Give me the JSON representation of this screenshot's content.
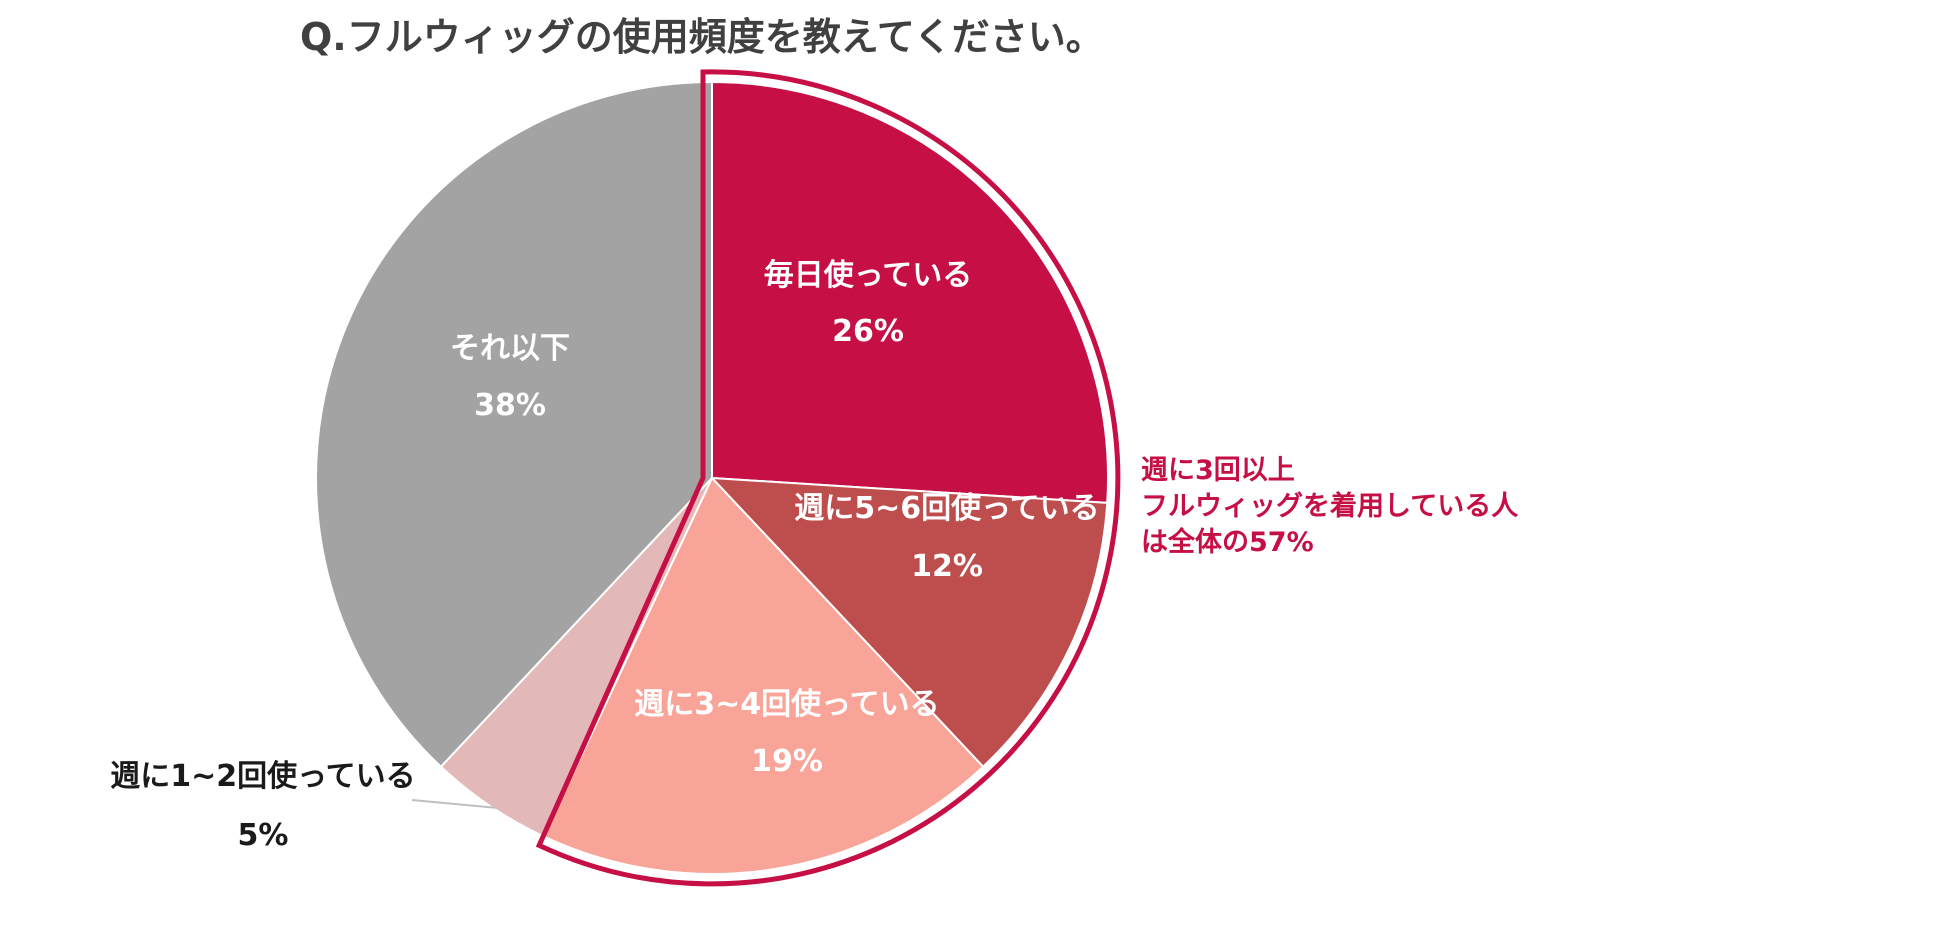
{
  "chart_data": {
    "type": "pie",
    "title": "Q.フルウィッグの使用頻度を教えてください。",
    "start_angle_deg": 0,
    "direction": "clockwise",
    "slices": [
      {
        "name": "毎日使っている",
        "value": 26,
        "value_label": "26%",
        "color": "#c50f45",
        "label_color": "#ffffff"
      },
      {
        "name": "週に5~6回使っている",
        "value": 12,
        "value_label": "12%",
        "color": "#bd4e4d",
        "label_color": "#ffffff"
      },
      {
        "name": "週に3~4回使っている",
        "value": 19,
        "value_label": "19%",
        "color": "#f8a498",
        "label_color": "#ffffff"
      },
      {
        "name": "週に1~2回使っている",
        "value": 5,
        "value_label": "5%",
        "color": "#e3b8b8",
        "label_color": "#1a1a1a"
      },
      {
        "name": "それ以下",
        "value": 38,
        "value_label": "38%",
        "color": "#a3a3a3",
        "label_color": "#ffffff"
      }
    ],
    "highlight": {
      "slices": [
        "毎日使っている",
        "週に5~6回使っている",
        "週に3~4回使っている"
      ],
      "color": "#c50f45",
      "annotation": [
        "週に3回以上",
        "フルウィッグを着用している人",
        "は全体の57%"
      ]
    }
  }
}
